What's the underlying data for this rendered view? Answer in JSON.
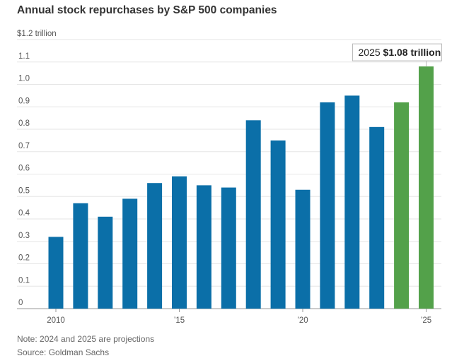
{
  "chart_data": {
    "type": "bar",
    "title": "Annual stock repurchases by S&P 500 companies",
    "yunit_label": "$1.2 trillion",
    "x": [
      2010,
      2011,
      2012,
      2013,
      2014,
      2015,
      2016,
      2017,
      2018,
      2019,
      2020,
      2021,
      2022,
      2023,
      2024,
      2025
    ],
    "values": [
      0.32,
      0.47,
      0.41,
      0.49,
      0.56,
      0.59,
      0.55,
      0.54,
      0.84,
      0.75,
      0.53,
      0.92,
      0.95,
      0.81,
      0.92,
      1.08
    ],
    "projected": [
      false,
      false,
      false,
      false,
      false,
      false,
      false,
      false,
      false,
      false,
      false,
      false,
      false,
      false,
      true,
      true
    ],
    "ylim": [
      0,
      1.2
    ],
    "yticks": [
      {
        "value": 0,
        "label": "0"
      },
      {
        "value": 0.1,
        "label": "0.1"
      },
      {
        "value": 0.2,
        "label": "0.2"
      },
      {
        "value": 0.3,
        "label": "0.3"
      },
      {
        "value": 0.4,
        "label": "0.4"
      },
      {
        "value": 0.5,
        "label": "0.5"
      },
      {
        "value": 0.6,
        "label": "0.6"
      },
      {
        "value": 0.7,
        "label": "0.7"
      },
      {
        "value": 0.8,
        "label": "0.8"
      },
      {
        "value": 0.9,
        "label": "0.9"
      },
      {
        "value": 1.0,
        "label": "1.0"
      },
      {
        "value": 1.1,
        "label": "1.1"
      }
    ],
    "xticks": [
      {
        "value": 2010,
        "label": "2010"
      },
      {
        "value": 2015,
        "label": "’15"
      },
      {
        "value": 2020,
        "label": "’20"
      },
      {
        "value": 2025,
        "label": "’25"
      }
    ],
    "annotation": {
      "x": 2025,
      "year_text": "2025",
      "value_text": "$1.08 trillion"
    },
    "colors": {
      "actual": "#0b6fa8",
      "projected": "#53a14a"
    },
    "grid": true
  },
  "footer": {
    "note": "Note: 2024 and 2025 are projections",
    "source": "Source: Goldman Sachs"
  }
}
